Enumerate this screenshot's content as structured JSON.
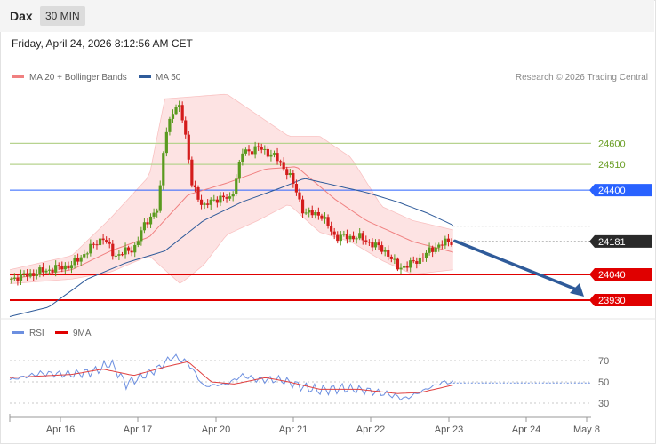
{
  "header": {
    "symbol": "Dax",
    "timeframe": "30 MIN",
    "datetime": "Friday, April 24, 2026 8:12:56 AM CET"
  },
  "legend": {
    "ma20": "MA 20 + Bollinger Bands",
    "ma50": "MA 50",
    "rsi": "RSI",
    "ma9": "9MA",
    "credit": "Research © 2026 Trading Central"
  },
  "colors": {
    "candle_up": "#5a9a1f",
    "candle_down": "#d41c1c",
    "ma20": "#f08080",
    "bollinger_fill": "#fde0e0",
    "ma50": "#2f5b9a",
    "resistance_green": "#b7d38f",
    "level_blue": "#2962ff",
    "level_red": "#e00000",
    "price_tag": "#2a2a2a",
    "rsi_line": "#6c8fe0",
    "rsi_ma": "#e04040",
    "arrow": "#2f5b9a"
  },
  "chart_data": [
    {
      "type": "candlestick",
      "title": "Dax 30 MIN",
      "x_ticks": [
        "Apr 16",
        "Apr 17",
        "Apr 20",
        "Apr 21",
        "Apr 22",
        "Apr 23",
        "Apr 24",
        "May 8"
      ],
      "ylim": [
        23850,
        24850
      ],
      "levels": [
        {
          "label": "24600",
          "value": 24600,
          "style": "resistance-green"
        },
        {
          "label": "24510",
          "value": 24510,
          "style": "resistance-green"
        },
        {
          "label": "24400",
          "value": 24400,
          "style": "blue"
        },
        {
          "label": "24181",
          "value": 24181,
          "style": "last-price"
        },
        {
          "label": "24040",
          "value": 24040,
          "style": "red"
        },
        {
          "label": "23930",
          "value": 23930,
          "style": "red"
        }
      ],
      "current_price": 24181,
      "projection": {
        "from": 24175,
        "to": 23930,
        "direction": "down"
      },
      "price_keypoints": [
        {
          "x": 0.0,
          "p": 24020
        },
        {
          "x": 0.5,
          "p": 24060
        },
        {
          "x": 0.8,
          "p": 24080
        },
        {
          "x": 1.2,
          "p": 24200
        },
        {
          "x": 1.35,
          "p": 24120
        },
        {
          "x": 1.6,
          "p": 24150
        },
        {
          "x": 1.75,
          "p": 24260
        },
        {
          "x": 1.85,
          "p": 24300
        },
        {
          "x": 1.92,
          "p": 24320
        },
        {
          "x": 2.0,
          "p": 24640
        },
        {
          "x": 2.1,
          "p": 24730
        },
        {
          "x": 2.2,
          "p": 24760
        },
        {
          "x": 2.25,
          "p": 24680
        },
        {
          "x": 2.35,
          "p": 24420
        },
        {
          "x": 2.5,
          "p": 24330
        },
        {
          "x": 2.7,
          "p": 24370
        },
        {
          "x": 2.85,
          "p": 24360
        },
        {
          "x": 3.0,
          "p": 24560
        },
        {
          "x": 3.2,
          "p": 24580
        },
        {
          "x": 3.4,
          "p": 24550
        },
        {
          "x": 3.6,
          "p": 24470
        },
        {
          "x": 3.7,
          "p": 24390
        },
        {
          "x": 3.8,
          "p": 24300
        },
        {
          "x": 4.0,
          "p": 24300
        },
        {
          "x": 4.2,
          "p": 24200
        },
        {
          "x": 4.5,
          "p": 24200
        },
        {
          "x": 4.85,
          "p": 24140
        },
        {
          "x": 5.0,
          "p": 24070
        },
        {
          "x": 5.15,
          "p": 24080
        },
        {
          "x": 5.3,
          "p": 24110
        },
        {
          "x": 5.5,
          "p": 24160
        },
        {
          "x": 5.65,
          "p": 24180
        },
        {
          "x": 5.72,
          "p": 24181
        }
      ],
      "ma20_keypoints": [
        {
          "x": 0.0,
          "p": 24020
        },
        {
          "x": 0.8,
          "p": 24060
        },
        {
          "x": 1.3,
          "p": 24140
        },
        {
          "x": 1.8,
          "p": 24200
        },
        {
          "x": 2.3,
          "p": 24380
        },
        {
          "x": 2.8,
          "p": 24430
        },
        {
          "x": 3.3,
          "p": 24490
        },
        {
          "x": 3.7,
          "p": 24500
        },
        {
          "x": 4.2,
          "p": 24360
        },
        {
          "x": 4.6,
          "p": 24270
        },
        {
          "x": 5.2,
          "p": 24180
        },
        {
          "x": 5.72,
          "p": 24135
        }
      ],
      "bb_upper_keypoints": [
        {
          "x": 0.0,
          "p": 24060
        },
        {
          "x": 0.8,
          "p": 24120
        },
        {
          "x": 1.3,
          "p": 24280
        },
        {
          "x": 1.8,
          "p": 24460
        },
        {
          "x": 2.0,
          "p": 24790
        },
        {
          "x": 2.4,
          "p": 24800
        },
        {
          "x": 2.8,
          "p": 24810
        },
        {
          "x": 3.2,
          "p": 24720
        },
        {
          "x": 3.6,
          "p": 24630
        },
        {
          "x": 4.0,
          "p": 24630
        },
        {
          "x": 4.4,
          "p": 24540
        },
        {
          "x": 4.8,
          "p": 24330
        },
        {
          "x": 5.2,
          "p": 24270
        },
        {
          "x": 5.72,
          "p": 24230
        }
      ],
      "bb_lower_keypoints": [
        {
          "x": 0.0,
          "p": 24000
        },
        {
          "x": 0.8,
          "p": 24020
        },
        {
          "x": 1.3,
          "p": 24050
        },
        {
          "x": 1.8,
          "p": 24120
        },
        {
          "x": 2.2,
          "p": 24000
        },
        {
          "x": 2.5,
          "p": 24080
        },
        {
          "x": 2.8,
          "p": 24210
        },
        {
          "x": 3.2,
          "p": 24270
        },
        {
          "x": 3.6,
          "p": 24340
        },
        {
          "x": 4.0,
          "p": 24220
        },
        {
          "x": 4.4,
          "p": 24180
        },
        {
          "x": 4.8,
          "p": 24100
        },
        {
          "x": 5.2,
          "p": 24040
        },
        {
          "x": 5.72,
          "p": 24060
        }
      ],
      "ma50_keypoints": [
        {
          "x": 0.0,
          "p": 23860
        },
        {
          "x": 0.5,
          "p": 23900
        },
        {
          "x": 1.0,
          "p": 24020
        },
        {
          "x": 1.5,
          "p": 24090
        },
        {
          "x": 2.0,
          "p": 24140
        },
        {
          "x": 2.5,
          "p": 24270
        },
        {
          "x": 3.0,
          "p": 24350
        },
        {
          "x": 3.5,
          "p": 24410
        },
        {
          "x": 3.8,
          "p": 24450
        },
        {
          "x": 4.2,
          "p": 24420
        },
        {
          "x": 4.6,
          "p": 24390
        },
        {
          "x": 5.0,
          "p": 24350
        },
        {
          "x": 5.4,
          "p": 24300
        },
        {
          "x": 5.72,
          "p": 24250
        }
      ]
    },
    {
      "type": "line",
      "title": "RSI",
      "ylim": [
        20,
        85
      ],
      "y_ticks": [
        30,
        50,
        70
      ],
      "series": [
        {
          "name": "RSI",
          "values_keypoints": [
            {
              "x": 0.0,
              "v": 52
            },
            {
              "x": 0.4,
              "v": 58
            },
            {
              "x": 0.8,
              "v": 57
            },
            {
              "x": 1.1,
              "v": 60
            },
            {
              "x": 1.3,
              "v": 68
            },
            {
              "x": 1.5,
              "v": 48
            },
            {
              "x": 1.7,
              "v": 55
            },
            {
              "x": 1.9,
              "v": 62
            },
            {
              "x": 2.1,
              "v": 74
            },
            {
              "x": 2.3,
              "v": 68
            },
            {
              "x": 2.5,
              "v": 46
            },
            {
              "x": 2.8,
              "v": 48
            },
            {
              "x": 3.0,
              "v": 56
            },
            {
              "x": 3.2,
              "v": 52
            },
            {
              "x": 3.5,
              "v": 52
            },
            {
              "x": 3.8,
              "v": 45
            },
            {
              "x": 4.0,
              "v": 42
            },
            {
              "x": 4.3,
              "v": 44
            },
            {
              "x": 4.6,
              "v": 42
            },
            {
              "x": 4.9,
              "v": 38
            },
            {
              "x": 5.1,
              "v": 34
            },
            {
              "x": 5.4,
              "v": 44
            },
            {
              "x": 5.6,
              "v": 50
            },
            {
              "x": 5.72,
              "v": 49
            }
          ]
        },
        {
          "name": "9MA",
          "values_keypoints": [
            {
              "x": 0.0,
              "v": 54
            },
            {
              "x": 0.8,
              "v": 57
            },
            {
              "x": 1.2,
              "v": 62
            },
            {
              "x": 1.6,
              "v": 56
            },
            {
              "x": 2.0,
              "v": 64
            },
            {
              "x": 2.3,
              "v": 69
            },
            {
              "x": 2.6,
              "v": 50
            },
            {
              "x": 2.9,
              "v": 48
            },
            {
              "x": 3.3,
              "v": 54
            },
            {
              "x": 3.6,
              "v": 50
            },
            {
              "x": 4.0,
              "v": 43
            },
            {
              "x": 4.5,
              "v": 43
            },
            {
              "x": 5.0,
              "v": 39
            },
            {
              "x": 5.3,
              "v": 40
            },
            {
              "x": 5.72,
              "v": 47
            }
          ]
        }
      ],
      "current_value": 49
    }
  ]
}
